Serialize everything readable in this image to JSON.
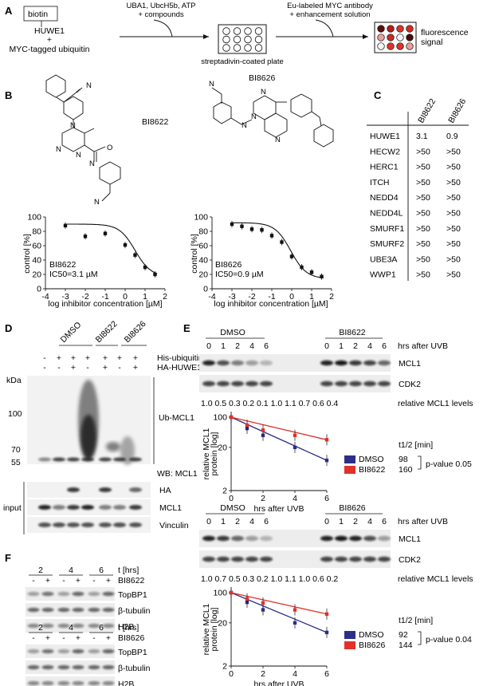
{
  "panels": {
    "A": "A",
    "B": "B",
    "C": "C",
    "D": "D",
    "E": "E",
    "F": "F"
  },
  "panelA": {
    "biotin": "biotin",
    "huwe1": "HUWE1",
    "plus": "+",
    "myc_ub": "MYC-tagged ubiquitin",
    "step1_line1": "UBA1, UbcH5b, ATP",
    "step1_line2": "+ compounds",
    "plate": "streptadivin-coated plate",
    "step2_line1": "Eu-labeled MYC antibody",
    "step2_line2": "+ enhancement solution",
    "readout_line1": "fluorescence",
    "readout_line2": "signal"
  },
  "panelB": {
    "compound1": "BI8622",
    "compound2": "BI8626",
    "chart1_label": "BI8622",
    "chart1_ic50": "IC50=3.1 µM",
    "chart2_label": "BI8626",
    "chart2_ic50": "IC50=0.9 µM"
  },
  "panelC": {
    "columns": [
      "BI8622",
      "BI8626"
    ],
    "rows": [
      {
        "name": "HUWE1",
        "v1": "3.1",
        "v2": "0.9"
      },
      {
        "name": "HECW2",
        "v1": ">50",
        "v2": ">50"
      },
      {
        "name": "HERC1",
        "v1": ">50",
        "v2": ">50"
      },
      {
        "name": "ITCH",
        "v1": ">50",
        "v2": ">50"
      },
      {
        "name": "NEDD4",
        "v1": ">50",
        "v2": ">50"
      },
      {
        "name": "NEDD4L",
        "v1": ">50",
        "v2": ">50"
      },
      {
        "name": "SMURF1",
        "v1": ">50",
        "v2": ">50"
      },
      {
        "name": "SMURF2",
        "v1": ">50",
        "v2": ">50"
      },
      {
        "name": "UBE3A",
        "v1": ">50",
        "v2": ">50"
      },
      {
        "name": "WWP1",
        "v1": ">50",
        "v2": ">50"
      }
    ]
  },
  "panelD": {
    "groups": [
      "DMSO",
      "BI8622",
      "BI8626"
    ],
    "his_ub": "His-ubiquitin",
    "ha_huwe1": "HA-HUWE1",
    "kda": "kDa",
    "markers": [
      "100",
      "70",
      "55"
    ],
    "ub_mcl1": "Ub-MCL1",
    "wb": "WB: MCL1",
    "input": "input",
    "input_labels": [
      "HA",
      "MCL1",
      "Vinculin"
    ],
    "row1_signs": [
      "-",
      "+",
      "+",
      "+",
      "+",
      "+",
      "+"
    ],
    "row2_signs": [
      "-",
      "-",
      "+",
      "-",
      "+",
      "-",
      "+"
    ]
  },
  "panelE1": {
    "group1": "DMSO",
    "group2": "BI8622",
    "times": [
      "0",
      "1",
      "2",
      "4",
      "6",
      "0",
      "1",
      "2",
      "4",
      "6"
    ],
    "time_label": "hrs after UVB",
    "blot1": "MCL1",
    "blot2": "CDK2",
    "levels": "1.0   0.5   0.3   0.2   0.1      1.0   1.1   0.7   0.6   0.4",
    "levels_label": "relative MCL1 levels",
    "t_half_label": "t1/2 [min]",
    "legend": [
      {
        "name": "DMSO",
        "t": "98"
      },
      {
        "name": "BI8622",
        "t": "160"
      }
    ],
    "pvalue": "p-value 0.05"
  },
  "panelE2": {
    "group1": "DMSO",
    "group2": "BI8626",
    "times": [
      "0",
      "1",
      "2",
      "4",
      "6",
      "0",
      "1",
      "2",
      "4",
      "6"
    ],
    "time_label": "hrs after UVB",
    "blot1": "MCL1",
    "blot2": "CDK2",
    "levels": "1.0   0.7   0.5   0.3   0.2      1.0   1.1   1.0   0.6   0.2",
    "levels_label": "relative MCL1 levels",
    "t_half_label": "t1/2 [min]",
    "legend": [
      {
        "name": "DMSO",
        "t": "92"
      },
      {
        "name": "BI8626",
        "t": "144"
      }
    ],
    "pvalue": "p-value 0.04"
  },
  "panelF": {
    "top": {
      "times": [
        "2",
        "4",
        "6"
      ],
      "t_label": "t [hrs]",
      "compound": "BI8622",
      "signs": [
        "-",
        "+",
        "-",
        "+",
        "-",
        "+"
      ],
      "bands": [
        "TopBP1",
        "β-tubulin",
        "H2B"
      ]
    },
    "bottom": {
      "times": [
        "2",
        "4",
        "6"
      ],
      "t_label": "t [hrs]",
      "compound": "BI8626",
      "signs": [
        "-",
        "+",
        "-",
        "+",
        "-",
        "+"
      ],
      "bands": [
        "TopBP1",
        "β-tubulin",
        "H2B"
      ]
    }
  },
  "chart_data": [
    {
      "type": "scatter",
      "title": "",
      "xlabel": "log inhibitor concentration [µM]",
      "ylabel": "control [%]",
      "xlim": [
        -4,
        2
      ],
      "ylim": [
        0,
        100
      ],
      "xticks": [
        -4,
        -3,
        -2,
        -1,
        0,
        1,
        2
      ],
      "yticks": [
        0,
        20,
        40,
        60,
        80,
        100
      ],
      "series": [
        {
          "x": [
            -3.0,
            -2.0,
            -1.0,
            0.0,
            0.5,
            1.0,
            1.5
          ],
          "y": [
            88,
            73,
            77,
            61,
            47,
            30,
            20
          ]
        }
      ]
    },
    {
      "type": "scatter",
      "title": "",
      "xlabel": "log inhibitor concentration [µM]",
      "ylabel": "control [%]",
      "xlim": [
        -4,
        2
      ],
      "ylim": [
        0,
        100
      ],
      "xticks": [
        -4,
        -3,
        -2,
        -1,
        0,
        1,
        2
      ],
      "yticks": [
        0,
        20,
        40,
        60,
        80,
        100
      ],
      "series": [
        {
          "x": [
            -3.0,
            -2.5,
            -2.0,
            -1.5,
            -1.0,
            -0.5,
            0.0,
            0.5,
            1.0,
            1.5
          ],
          "y": [
            90,
            87,
            83,
            82,
            74,
            65,
            45,
            30,
            23,
            17
          ]
        }
      ]
    },
    {
      "type": "line",
      "title": "",
      "xlabel": "hrs after UVB",
      "ylabel": "relative MCL1 protein [log]",
      "xlim": [
        0,
        6
      ],
      "ylim": [
        2,
        100
      ],
      "xticks": [
        0,
        2,
        4,
        6
      ],
      "yticks": [
        2,
        20,
        100
      ],
      "yscale": "log",
      "series": [
        {
          "name": "DMSO",
          "color": "#2b2f87",
          "x": [
            0,
            1,
            2,
            4,
            6
          ],
          "y": [
            100,
            55,
            38,
            20,
            10
          ]
        },
        {
          "name": "BI8622",
          "color": "#e0322b",
          "x": [
            0,
            1,
            2,
            4,
            6
          ],
          "y": [
            100,
            65,
            50,
            38,
            30
          ]
        }
      ]
    },
    {
      "type": "line",
      "title": "",
      "xlabel": "hrs after UVB",
      "ylabel": "relative MCL1 protein [log]",
      "xlim": [
        0,
        6
      ],
      "ylim": [
        2,
        100
      ],
      "xticks": [
        0,
        2,
        4,
        6
      ],
      "yticks": [
        2,
        20,
        100
      ],
      "yscale": "log",
      "series": [
        {
          "name": "DMSO",
          "color": "#2b2f87",
          "x": [
            0,
            1,
            2,
            4,
            6
          ],
          "y": [
            100,
            60,
            40,
            20,
            12
          ]
        },
        {
          "name": "BI8626",
          "color": "#e0322b",
          "x": [
            0,
            1,
            2,
            4,
            6
          ],
          "y": [
            100,
            72,
            58,
            40,
            32
          ]
        }
      ]
    }
  ]
}
